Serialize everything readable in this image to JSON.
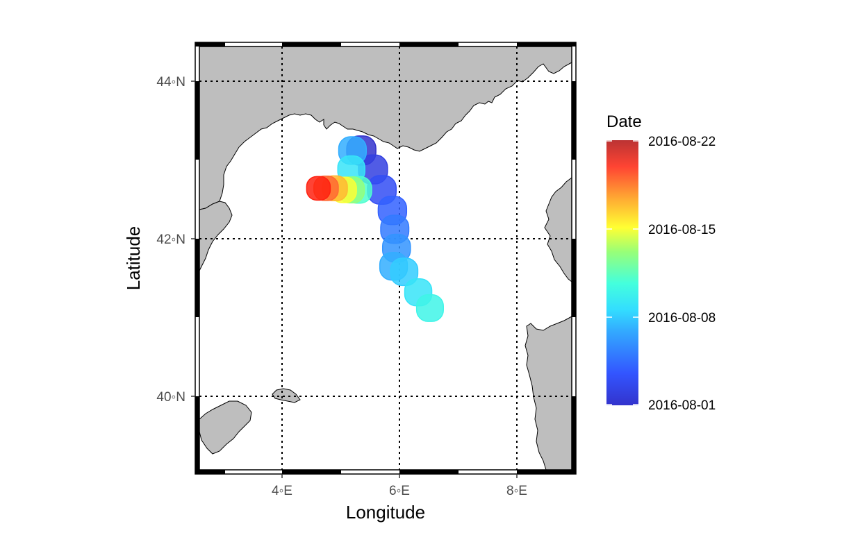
{
  "chart_data": {
    "type": "scatter",
    "xlabel": "Longitude",
    "ylabel": "Latitude",
    "xlim": [
      2.6,
      9.0
    ],
    "ylim": [
      39.05,
      44.5
    ],
    "x_ticks": [
      {
        "value": 4,
        "label": "4◦E"
      },
      {
        "value": 6,
        "label": "6◦E"
      },
      {
        "value": 8,
        "label": "8◦E"
      }
    ],
    "y_ticks": [
      {
        "value": 40,
        "label": "40◦N"
      },
      {
        "value": 42,
        "label": "42◦N"
      },
      {
        "value": 44,
        "label": "44◦N"
      }
    ],
    "grid": true,
    "grid_style": "dotted",
    "legend": {
      "title": "Date",
      "placement": "right",
      "min": "2016-08-01",
      "max": "2016-08-22",
      "labels": [
        "2016-08-22",
        "2016-08-15",
        "2016-08-08",
        "2016-08-01"
      ]
    },
    "colors": {
      "land": "#bebebe",
      "coast": "#000000",
      "sea": "#ffffff",
      "colormap": [
        "#3333cc",
        "#3366ff",
        "#33ccff",
        "#33ffee",
        "#77ff88",
        "#ffff33",
        "#ffaa22",
        "#ff4422",
        "#cc2222"
      ]
    },
    "series": [
      {
        "points": [
          {
            "x": 5.35,
            "y": 43.12,
            "date": "2016-08-01"
          },
          {
            "x": 5.55,
            "y": 42.88,
            "date": "2016-08-02"
          },
          {
            "x": 5.7,
            "y": 42.62,
            "date": "2016-08-03"
          },
          {
            "x": 5.88,
            "y": 42.36,
            "date": "2016-08-04"
          },
          {
            "x": 5.92,
            "y": 42.12,
            "date": "2016-08-05"
          },
          {
            "x": 5.95,
            "y": 41.88,
            "date": "2016-08-06"
          },
          {
            "x": 5.9,
            "y": 41.65,
            "date": "2016-08-07"
          },
          {
            "x": 5.2,
            "y": 43.12,
            "date": "2016-08-07"
          },
          {
            "x": 6.08,
            "y": 41.58,
            "date": "2016-08-08"
          },
          {
            "x": 6.32,
            "y": 41.32,
            "date": "2016-08-09"
          },
          {
            "x": 6.52,
            "y": 41.12,
            "date": "2016-08-10"
          },
          {
            "x": 5.18,
            "y": 42.88,
            "date": "2016-08-09"
          },
          {
            "x": 5.3,
            "y": 42.62,
            "date": "2016-08-11"
          },
          {
            "x": 5.18,
            "y": 42.62,
            "date": "2016-08-13"
          },
          {
            "x": 5.05,
            "y": 42.62,
            "date": "2016-08-15"
          },
          {
            "x": 4.9,
            "y": 42.64,
            "date": "2016-08-17"
          },
          {
            "x": 4.75,
            "y": 42.64,
            "date": "2016-08-19"
          },
          {
            "x": 4.62,
            "y": 42.64,
            "date": "2016-08-22"
          }
        ]
      }
    ]
  }
}
